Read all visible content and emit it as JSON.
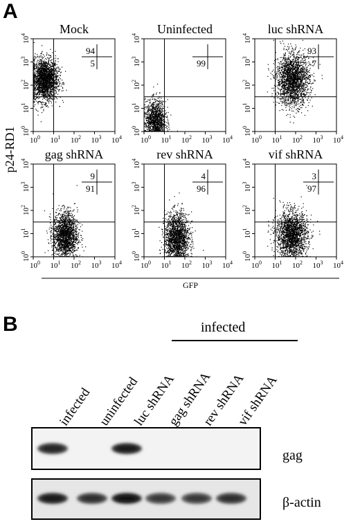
{
  "panel_a": {
    "letter": "A",
    "y_axis_label": "p24-RD1",
    "x_axis_label": "GFP",
    "tick_labels": [
      "10",
      "10",
      "10",
      "10",
      "10"
    ],
    "tick_exponents": [
      "0",
      "1",
      "2",
      "3",
      "4"
    ],
    "plots": [
      {
        "title": "Mock",
        "upper": "94",
        "lower": "5"
      },
      {
        "title": "Uninfected",
        "upper": "",
        "lower": "99"
      },
      {
        "title": "luc shRNA",
        "upper": "93",
        "lower": "7"
      },
      {
        "title": "gag shRNA",
        "upper": "9",
        "lower": "91"
      },
      {
        "title": "rev shRNA",
        "upper": "4",
        "lower": "96"
      },
      {
        "title": "vif shRNA",
        "upper": "3",
        "lower": "97"
      }
    ]
  },
  "panel_b": {
    "letter": "B",
    "group_label": "infected",
    "lanes": [
      "infected",
      "uninfected",
      "luc shRNA",
      "gag shRNA",
      "rev shRNA",
      "vif shRNA"
    ],
    "blots": [
      {
        "label": "gag",
        "band_intensity": [
          0.85,
          0.0,
          0.9,
          0.0,
          0.0,
          0.0
        ]
      },
      {
        "label": "β-actin",
        "band_intensity": [
          0.9,
          0.8,
          0.95,
          0.75,
          0.75,
          0.8
        ]
      }
    ]
  }
}
